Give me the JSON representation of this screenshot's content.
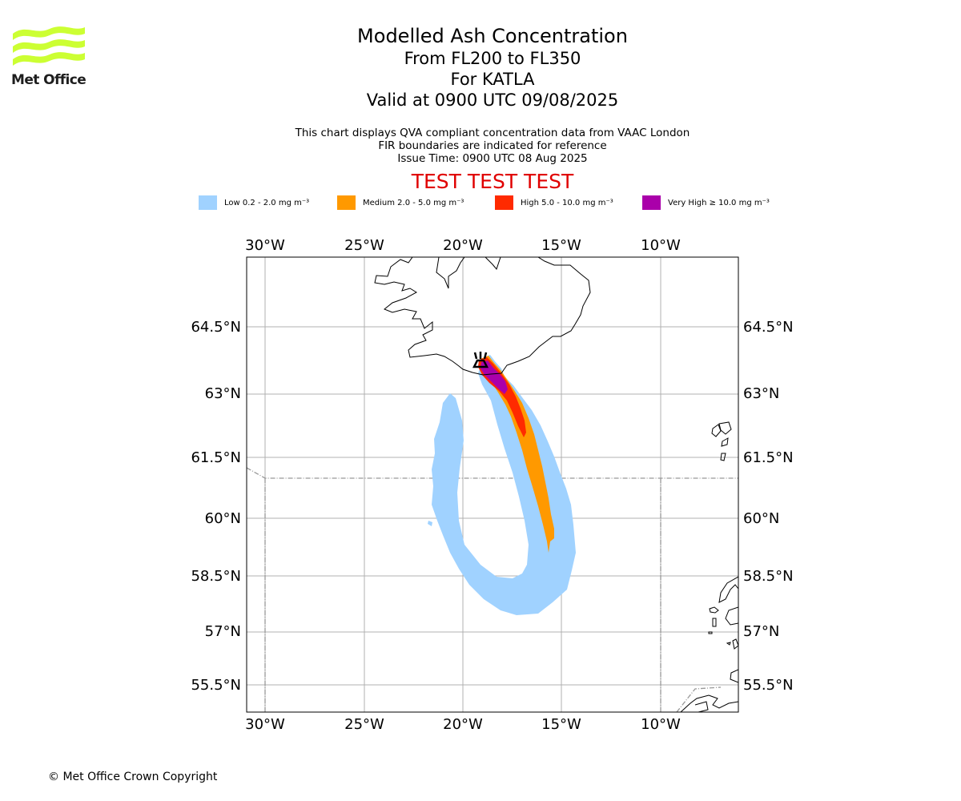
{
  "logo": {
    "text": "Met Office",
    "accent_color": "#ccff33"
  },
  "title": {
    "main": "Modelled Ash Concentration",
    "levels": "From FL200 to FL350",
    "volcano": "For KATLA",
    "valid": "Valid at 0900 UTC 09/08/2025"
  },
  "subtitle": {
    "line1": "This chart displays QVA compliant concentration data from VAAC London",
    "line2": "FIR boundaries are indicated for reference",
    "line3": "Issue Time: 0900 UTC 08 Aug 2025"
  },
  "test_banner": "TEST TEST TEST",
  "legend": [
    {
      "label": "Low 0.2 - 2.0 mg m⁻³",
      "color": "#a0d2ff"
    },
    {
      "label": "Medium 2.0 - 5.0 mg m⁻³",
      "color": "#ff9900"
    },
    {
      "label": "High 5.0 - 10.0 mg m⁻³",
      "color": "#ff2a00"
    },
    {
      "label": "Very High  ≥  10.0 mg m⁻³",
      "color": "#aa00aa"
    }
  ],
  "map": {
    "lon_ticks": [
      "30°W",
      "25°W",
      "20°W",
      "15°W",
      "10°W"
    ],
    "lat_ticks": [
      "64.5°N",
      "63°N",
      "61.5°N",
      "60°N",
      "58.5°N",
      "57°N",
      "55.5°N"
    ]
  },
  "copyright": "© Met Office Crown Copyright"
}
